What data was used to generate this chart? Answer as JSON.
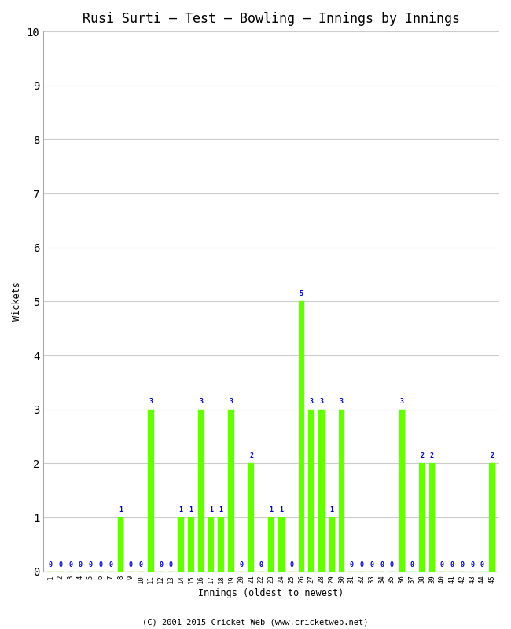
{
  "title": "Rusi Surti – Test – Bowling – Innings by Innings",
  "xlabel": "Innings (oldest to newest)",
  "ylabel": "Wickets",
  "bar_color": "#66ff00",
  "label_color": "#0000cc",
  "background_color": "#ffffff",
  "grid_color": "#cccccc",
  "ylim": [
    0,
    10
  ],
  "yticks": [
    0,
    1,
    2,
    3,
    4,
    5,
    6,
    7,
    8,
    9,
    10
  ],
  "innings": [
    1,
    2,
    3,
    4,
    5,
    6,
    7,
    8,
    9,
    10,
    11,
    12,
    13,
    14,
    15,
    16,
    17,
    18,
    19,
    20,
    21,
    22,
    23,
    24,
    25,
    26,
    27,
    28,
    29,
    30,
    31,
    32,
    33,
    34,
    35,
    36,
    37,
    38,
    39,
    40,
    41,
    42,
    43,
    44,
    45
  ],
  "wickets": [
    0,
    0,
    0,
    0,
    0,
    0,
    0,
    1,
    0,
    0,
    3,
    0,
    0,
    1,
    1,
    3,
    1,
    1,
    3,
    0,
    2,
    0,
    1,
    1,
    0,
    5,
    3,
    3,
    1,
    3,
    0,
    0,
    0,
    0,
    0,
    3,
    0,
    2,
    2,
    0,
    0,
    0,
    0,
    0,
    2
  ],
  "footer": "(C) 2001-2015 Cricket Web (www.cricketweb.net)"
}
